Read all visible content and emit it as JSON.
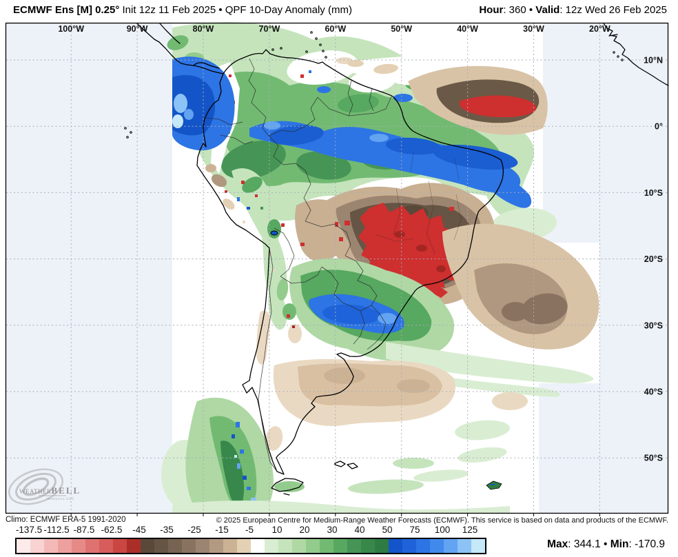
{
  "header": {
    "model": "ECMWF Ens [M] 0.25°",
    "init": " Init 12z 11 Feb 2025 • QPF 10-Day Anomaly (mm)",
    "hour_label": "Hour",
    "hour_value": ": 360 • ",
    "valid_label": "Valid",
    "valid_value": ": 12z Wed 26 Feb 2025"
  },
  "map": {
    "lon_labels": [
      "100°W",
      "90°W",
      "80°W",
      "70°W",
      "60°W",
      "50°W",
      "40°W",
      "30°W",
      "20°W"
    ],
    "lat_labels": [
      "10°N",
      "0°",
      "10°S",
      "20°S",
      "30°S",
      "40°S",
      "50°S"
    ],
    "ocean_color": "#edf2f9",
    "grid_color": "#a7adb5"
  },
  "logo": {
    "weather": "Weather",
    "bell": "BELL",
    "sub": "Analytics LLC"
  },
  "footer": {
    "climo": "Climo: ECMWF ERA-5 1991-2020",
    "copyright": "© 2025 European Centre for Medium-Range Weather Forecasts (ECMWF). This service is based on data and products of the ECMWF.",
    "max_label": "Max",
    "max_value": ": 344.1",
    "bullet": " • ",
    "min_label": "Min",
    "min_value": ": -170.9"
  },
  "colorbar": {
    "labels": [
      "-137.5",
      "-112.5",
      "-87.5",
      "-62.5",
      "-45",
      "-35",
      "-25",
      "-15",
      "-5",
      "10",
      "20",
      "30",
      "40",
      "50",
      "75",
      "100",
      "125"
    ],
    "colors": [
      "#fcebea",
      "#f8d3d2",
      "#f3b9b8",
      "#eda19f",
      "#e68a88",
      "#de7271",
      "#d65d5b",
      "#c94643",
      "#ab2f28",
      "#584939",
      "#665544",
      "#776351",
      "#897360",
      "#9c8570",
      "#b29a82",
      "#ccb294",
      "#e4d0b4",
      "#ffffff",
      "#d9edd2",
      "#c5e4bc",
      "#afd8a5",
      "#93cb8c",
      "#72ba72",
      "#57a860",
      "#469556",
      "#38884c",
      "#2e7b43",
      "#1355c8",
      "#1f63da",
      "#2d74e4",
      "#4289ec",
      "#62a3f2",
      "#8cc3f6",
      "#c5e9f8"
    ]
  }
}
